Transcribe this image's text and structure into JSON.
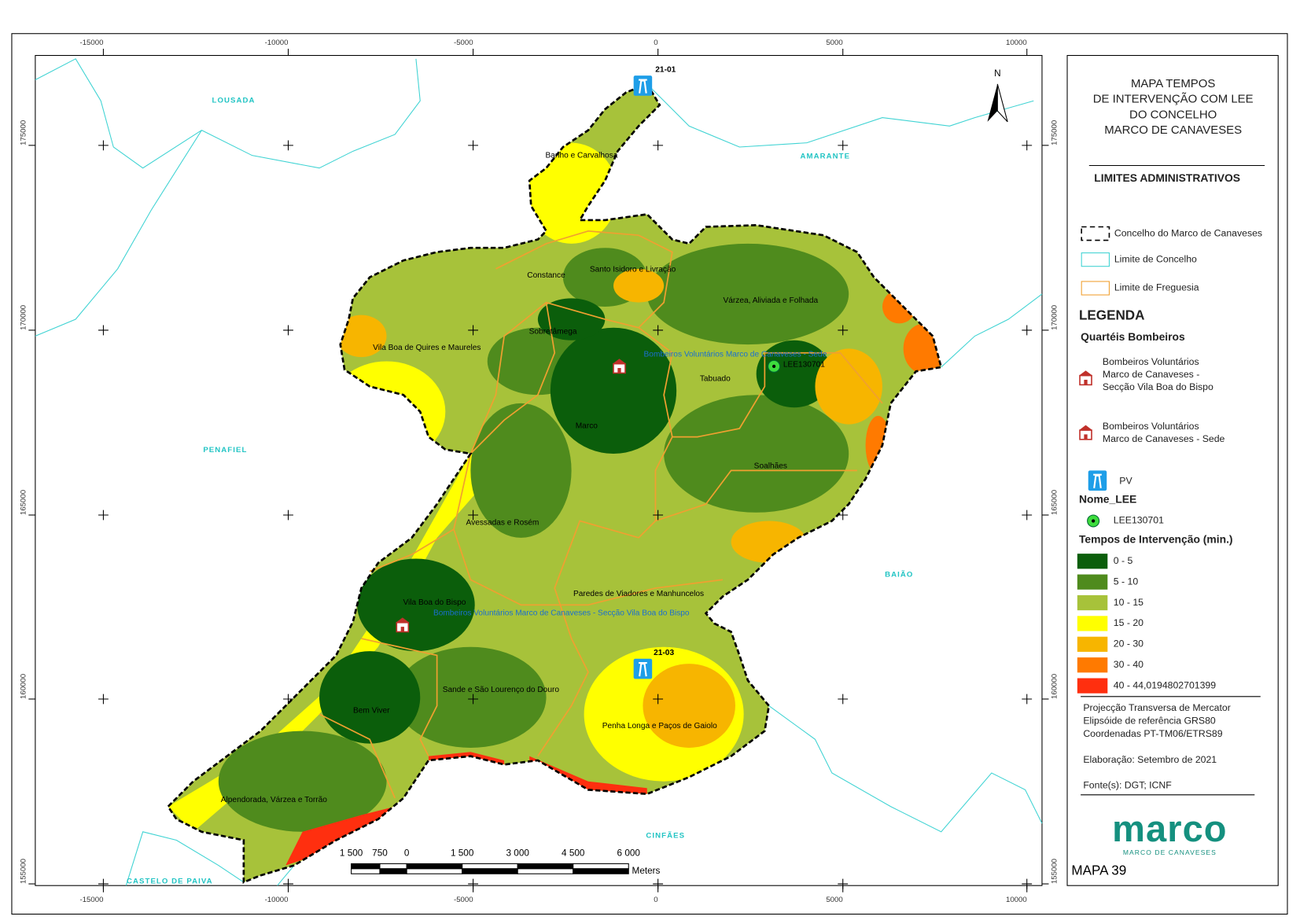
{
  "map": {
    "x_ticks": [
      "-15000",
      "-10000",
      "-5000",
      "0",
      "5000",
      "10000"
    ],
    "y_ticks": [
      "175000",
      "170000",
      "165000",
      "160000",
      "155000"
    ],
    "neighbors": [
      "LOUSADA",
      "AMARANTE",
      "PENAFIEL",
      "BAIÃO",
      "CINFÃES",
      "CASTELO DE PAIVA"
    ],
    "parishes": [
      "Banho e Carvalhosa",
      "Constance",
      "Santo Isidoro e Livração",
      "Várzea, Aliviada e Folhada",
      "Sobretâmega",
      "Vila Boa de Quires e Maureles",
      "Tabuado",
      "Marco",
      "Soalhães",
      "Avessadas e Rosém",
      "Paredes de Viadores e Manhuncelos",
      "Vila Boa do Bispo",
      "Sande e São Lourenço do Douro",
      "Bem Viver",
      "Penha Longa e Paços de Gaiolo",
      "Alpendorada, Várzea e Torrão"
    ],
    "stations": [
      "Bombeiros Voluntários Marco de Canaveses - Sede",
      "Bombeiros Voluntários Marco de Canaveses - Secção Vila Boa do Bispo"
    ],
    "pv": [
      "21-01",
      "21-03"
    ],
    "lee": "LEE130701",
    "north": "N",
    "scale": {
      "labels": [
        "1 500",
        "750",
        "0",
        "1 500",
        "3 000",
        "4 500",
        "6 000"
      ],
      "unit": "Meters"
    }
  },
  "legend": {
    "title": [
      "MAPA TEMPOS",
      "DE INTERVENÇÃO COM LEE",
      "DO CONCELHO",
      "MARCO DE CANAVESES"
    ],
    "admin_title": "LIMITES ADMINISTRATIVOS",
    "admin_items": [
      "Concelho do Marco de Canaveses",
      "Limite de Concelho",
      "Limite de Freguesia"
    ],
    "heading": "LEGENDA",
    "stations_title": "Quartéis Bombeiros",
    "station_items": [
      [
        "Bombeiros Voluntários",
        "Marco de Canaveses -",
        "Secção Vila Boa do Bispo"
      ],
      [
        "Bombeiros Voluntários",
        "Marco de Canaveses - Sede"
      ]
    ],
    "pv": "PV",
    "lee_title": "Nome_LEE",
    "lee_item": "LEE130701",
    "times_title": "Tempos de Intervenção (min.)",
    "classes": [
      {
        "label": "0 - 5",
        "color": "#0b5e0b"
      },
      {
        "label": "5 - 10",
        "color": "#4f8b1d"
      },
      {
        "label": "10 - 15",
        "color": "#a7c23a"
      },
      {
        "label": "15 - 20",
        "color": "#ffff00"
      },
      {
        "label": "20 - 30",
        "color": "#f7b500"
      },
      {
        "label": "30 - 40",
        "color": "#ff7a00"
      },
      {
        "label": "40 - 44,0194802701399",
        "color": "#ff2f0f"
      }
    ],
    "projection": [
      "Projecção Transversa de Mercator",
      "Elipsóide de referência GRS80",
      "Coordenadas PT-TM06/ETRS89"
    ],
    "date": "Elaboração: Setembro de 2021",
    "source": "Fonte(s): DGT; ICNF",
    "logo": "marco",
    "logo_sub": "MARCO DE CANAVESES",
    "map_number": "MAPA 39"
  }
}
